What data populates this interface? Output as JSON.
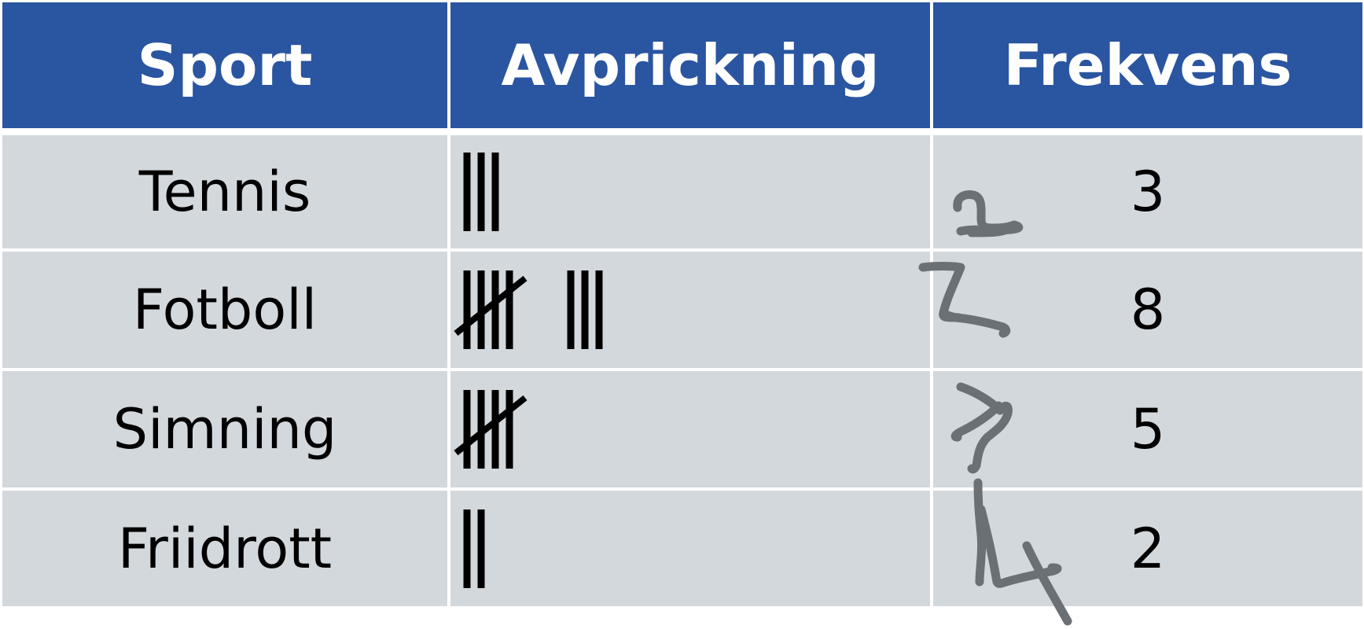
{
  "table": {
    "headers": [
      "Sport",
      "Avprickning",
      "Frekvens"
    ],
    "rows": [
      {
        "sport": "Tennis",
        "tally": 3,
        "frekvens": "3"
      },
      {
        "sport": "Fotboll",
        "tally": 8,
        "frekvens": "8"
      },
      {
        "sport": "Simning",
        "tally": 5,
        "frekvens": "5"
      },
      {
        "sport": "Friidrott",
        "tally": 2,
        "frekvens": "2"
      }
    ]
  },
  "handwritten_digits": [
    "2",
    "7",
    "7",
    "4"
  ],
  "colors": {
    "header_bg": "#2a55a0",
    "header_text": "#ffffff",
    "row_bg": "#d3d8dd",
    "ink": "#000000",
    "pen": "#6b7075"
  }
}
